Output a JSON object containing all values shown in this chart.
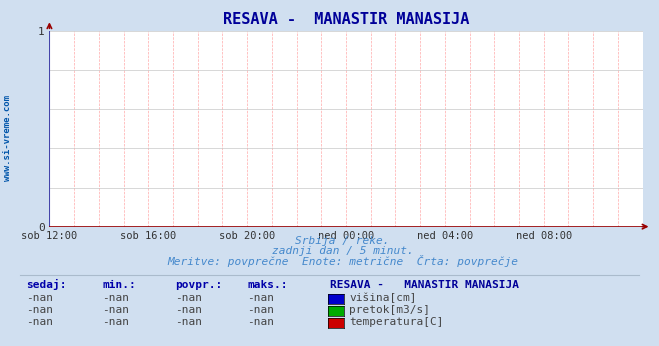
{
  "title": "RESAVA -  MANASTIR MANASIJA",
  "title_color": "#000099",
  "bg_color": "#d0dff0",
  "plot_bg_color": "#ffffff",
  "grid_color_h": "#c8c8c8",
  "grid_color_v": "#ffaaaa",
  "axis_color_bottom": "#990000",
  "axis_color_left": "#4444aa",
  "watermark": "www.si-vreme.com",
  "watermark_color": "#0055aa",
  "subtitle_lines": [
    "Srbija / reke.",
    "zadnji dan / 5 minut.",
    "Meritve: povprečne  Enote: metrične  Črta: povprečje"
  ],
  "subtitle_color": "#4488cc",
  "xlabels": [
    "sob 12:00",
    "sob 16:00",
    "sob 20:00",
    "ned 00:00",
    "ned 04:00",
    "ned 08:00"
  ],
  "n_vertical_grid": 24,
  "ylim": [
    0,
    1
  ],
  "yticks": [
    0,
    1
  ],
  "legend_title": "RESAVA -   MANASTIR MANASIJA",
  "legend_title_color": "#000099",
  "legend_items": [
    {
      "label": "višina[cm]",
      "color": "#0000cc"
    },
    {
      "label": "pretok[m3/s]",
      "color": "#00aa00"
    },
    {
      "label": "temperatura[C]",
      "color": "#cc0000"
    }
  ],
  "table_headers": [
    "sedaj:",
    "min.:",
    "povpr.:",
    "maks.:"
  ],
  "table_header_color": "#0000aa",
  "table_values": [
    "-nan",
    "-nan",
    "-nan",
    "-nan"
  ],
  "table_value_color": "#444444",
  "arrow_color": "#990000",
  "xline_color": "#5555aa",
  "font_family": "monospace",
  "hgrid_n": 5
}
